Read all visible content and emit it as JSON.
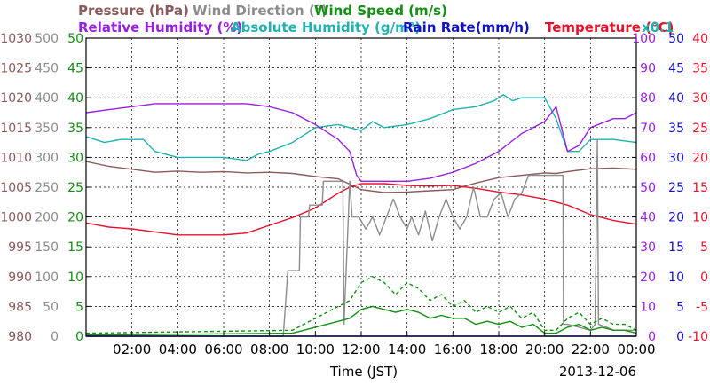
{
  "chart_data": {
    "type": "line",
    "date_label": "2013-12-06",
    "xlabel": "Time (JST)",
    "x_ticks": [
      "02:00",
      "04:00",
      "06:00",
      "08:00",
      "10:00",
      "12:00",
      "14:00",
      "16:00",
      "18:00",
      "20:00",
      "22:00",
      "00:00"
    ],
    "xlim_hours": [
      0,
      24
    ],
    "grid": true,
    "legend_rows": [
      [
        {
          "text": "Pressure (hPa)",
          "color": "#8b5a5a"
        },
        {
          "text": "Wind Direction (°)",
          "color": "#8c8c8c"
        },
        {
          "text": "Wind Speed (m/s)",
          "color": "#129012"
        }
      ],
      [
        {
          "text": "Relative Humidity (%)",
          "color": "#9a1fe0"
        },
        {
          "text": "Absolute Humidity (g/m³)",
          "color": "#1fb2b2"
        },
        {
          "text": "Rain Rate(mm/h)",
          "color": "#1010c8"
        },
        {
          "text": "Temperature (°C)",
          "color": "#e8102a"
        },
        {
          "text": "x0.1",
          "color": "#1fb2b2"
        }
      ]
    ],
    "axes": [
      {
        "name": "Pressure (hPa)",
        "color": "#8b5a5a",
        "min": 980,
        "max": 1030,
        "ticks": [
          "980",
          "985",
          "990",
          "995",
          "1000",
          "1005",
          "1010",
          "1015",
          "1020",
          "1025",
          "1030"
        ]
      },
      {
        "name": "Wind Direction (°)",
        "color": "#8c8c8c",
        "min": 0,
        "max": 500,
        "ticks": [
          "0",
          "50",
          "100",
          "150",
          "200",
          "250",
          "300",
          "350",
          "400",
          "450",
          "500"
        ]
      },
      {
        "name": "Wind Speed (m/s)",
        "color": "#129012",
        "min": 0,
        "max": 50,
        "ticks": [
          "0",
          "5",
          "10",
          "15",
          "20",
          "25",
          "30",
          "35",
          "40",
          "45",
          "50"
        ]
      },
      {
        "name": "Humidity (%)",
        "color": "#9a1fe0",
        "min": 0,
        "max": 100,
        "ticks": [
          "0",
          "10",
          "20",
          "30",
          "40",
          "50",
          "60",
          "70",
          "80",
          "90",
          "100"
        ]
      },
      {
        "name": "Rain Rate(mm/h)",
        "color": "#1010c8",
        "min": 0,
        "max": 50,
        "ticks": [
          "0",
          "5",
          "10",
          "15",
          "20",
          "25",
          "30",
          "35",
          "40",
          "45",
          "50"
        ]
      },
      {
        "name": "Temperature (°C)",
        "color": "#e8102a",
        "min": -10,
        "max": 40,
        "ticks": [
          "-10",
          "-5",
          "0",
          "5",
          "10",
          "15",
          "20",
          "25",
          "30",
          "35",
          "40"
        ]
      }
    ],
    "series": [
      {
        "name": "Pressure (hPa)",
        "color": "#8b5a5a",
        "axis": 0,
        "x": [
          0,
          1,
          2,
          3,
          4,
          5,
          6,
          7,
          8,
          9,
          10,
          11,
          11.5,
          12,
          13,
          14,
          15,
          16,
          17,
          18,
          19,
          20,
          20.5,
          21,
          22,
          23,
          24
        ],
        "y": [
          1009.3,
          1008.5,
          1008,
          1007.5,
          1007.7,
          1007.5,
          1007.6,
          1007.4,
          1007.5,
          1007.3,
          1006.8,
          1006.4,
          1005.5,
          1004.6,
          1004.1,
          1004.2,
          1004.4,
          1004.6,
          1005.7,
          1006.6,
          1007,
          1007.4,
          1007.3,
          1007.6,
          1008.1,
          1008.2,
          1008
        ]
      },
      {
        "name": "Absolute Humidity (g/m³) x0.1",
        "color": "#1fb2b2",
        "axis": 3,
        "x": [
          0,
          0.8,
          1.5,
          2.5,
          3,
          4,
          5,
          6,
          7,
          7.5,
          8,
          9,
          10,
          11,
          11.5,
          12,
          12.5,
          13,
          14,
          15,
          16,
          17,
          17.8,
          18.2,
          18.6,
          19,
          20,
          20.5,
          21,
          21.5,
          22,
          23,
          24
        ],
        "y": [
          67,
          65,
          66,
          66,
          62,
          60,
          60,
          60,
          59,
          61,
          62,
          65,
          70,
          71,
          70,
          69,
          72,
          70,
          71,
          73,
          76,
          77,
          79,
          81,
          79,
          80,
          80,
          73,
          62,
          62,
          66,
          66,
          65
        ]
      },
      {
        "name": "Relative Humidity (%)",
        "color": "#9a1fe0",
        "axis": 3,
        "x": [
          0,
          1,
          2,
          3,
          4,
          5,
          6,
          7,
          8,
          9,
          10,
          11,
          11.5,
          11.8,
          12,
          13,
          14,
          15,
          16,
          17,
          18,
          19,
          20,
          20.5,
          21,
          21.5,
          22,
          23,
          23.5,
          24
        ],
        "y": [
          75,
          76,
          77,
          78,
          78,
          78,
          78,
          78,
          77,
          75,
          71,
          66,
          62,
          54,
          52,
          52,
          52,
          53,
          55,
          58,
          62,
          68,
          72,
          77,
          62,
          64,
          70,
          73,
          73,
          75
        ]
      },
      {
        "name": "Temperature (°C)",
        "color": "#e8102a",
        "axis": 5,
        "x": [
          0,
          1,
          2,
          3,
          4,
          5,
          6,
          7,
          8,
          9,
          10,
          11,
          11.5,
          12,
          13,
          14,
          15,
          16,
          17,
          18,
          19,
          20,
          21,
          22,
          23,
          24
        ],
        "y": [
          9,
          8.3,
          8,
          7.5,
          7,
          7,
          7,
          7.3,
          8.6,
          9.9,
          11.5,
          14,
          15,
          15.6,
          15.6,
          15.3,
          15.2,
          15.3,
          14.8,
          14.2,
          13.7,
          13,
          12,
          10.4,
          9.4,
          8.8
        ]
      },
      {
        "name": "Wind Direction (°)",
        "color": "#8c8c8c",
        "axis": 1,
        "x": [
          0,
          8.6,
          8.8,
          9.3,
          9.35,
          9.7,
          9.75,
          10.3,
          10.35,
          11.2,
          11.25,
          11.5,
          11.6,
          11.9,
          12.2,
          12.5,
          12.8,
          13.1,
          13.4,
          13.7,
          14,
          14.2,
          14.5,
          14.8,
          15.1,
          15.4,
          15.7,
          16,
          16.3,
          16.6,
          16.9,
          17.2,
          17.5,
          17.8,
          18.1,
          18.4,
          18.7,
          19,
          19.3,
          19.6,
          19.9,
          20.2,
          20.5,
          20.8,
          20.82,
          21,
          21.5,
          22,
          22.2,
          22.3,
          22.35,
          22.7,
          23,
          23.5,
          24
        ],
        "y": [
          0,
          0,
          110,
          110,
          200,
          200,
          220,
          220,
          260,
          260,
          20,
          260,
          200,
          200,
          180,
          200,
          170,
          200,
          230,
          200,
          180,
          200,
          170,
          210,
          160,
          200,
          230,
          200,
          180,
          200,
          250,
          200,
          200,
          230,
          240,
          200,
          230,
          240,
          270,
          270,
          270,
          270,
          270,
          270,
          20,
          20,
          15,
          10,
          20,
          330,
          20,
          15,
          10,
          10,
          10
        ]
      },
      {
        "name": "Wind Speed (m/s) max",
        "color": "#129012",
        "axis": 2,
        "dashed": true,
        "x": [
          0,
          9,
          10,
          11,
          11.5,
          12,
          12.5,
          13,
          13.5,
          14,
          14.5,
          15,
          15.5,
          16,
          16.5,
          17,
          17.5,
          18,
          18.5,
          19,
          19.5,
          20,
          20.5,
          21,
          21.5,
          22,
          22.5,
          23,
          23.5,
          24
        ],
        "y": [
          0.5,
          1,
          3,
          5,
          6,
          9,
          10,
          9,
          7,
          9,
          8,
          6,
          7,
          5,
          6,
          4,
          5,
          4,
          5,
          3,
          4,
          1,
          1,
          3,
          4,
          2,
          3,
          2,
          2,
          1
        ]
      },
      {
        "name": "Wind Speed (m/s)",
        "color": "#129012",
        "axis": 2,
        "x": [
          0,
          9,
          10,
          11,
          11.5,
          12,
          12.5,
          13,
          13.5,
          14,
          14.5,
          15,
          15.5,
          16,
          16.5,
          17,
          17.5,
          18,
          18.5,
          19,
          19.5,
          20,
          20.5,
          21,
          21.5,
          22,
          22.5,
          23,
          23.5,
          24
        ],
        "y": [
          0.2,
          0.5,
          1.5,
          2.5,
          3,
          4.5,
          5,
          4.5,
          4,
          4.5,
          4,
          3,
          3.5,
          3,
          3,
          2,
          2.5,
          2,
          2.5,
          1.5,
          2,
          0.5,
          0.5,
          1.5,
          2,
          1,
          1.5,
          1,
          1,
          0.5
        ]
      },
      {
        "name": "Rain Rate(mm/h)",
        "color": "#1010c8",
        "axis": 4,
        "x": [
          0,
          24
        ],
        "y": [
          0,
          0
        ]
      }
    ]
  }
}
